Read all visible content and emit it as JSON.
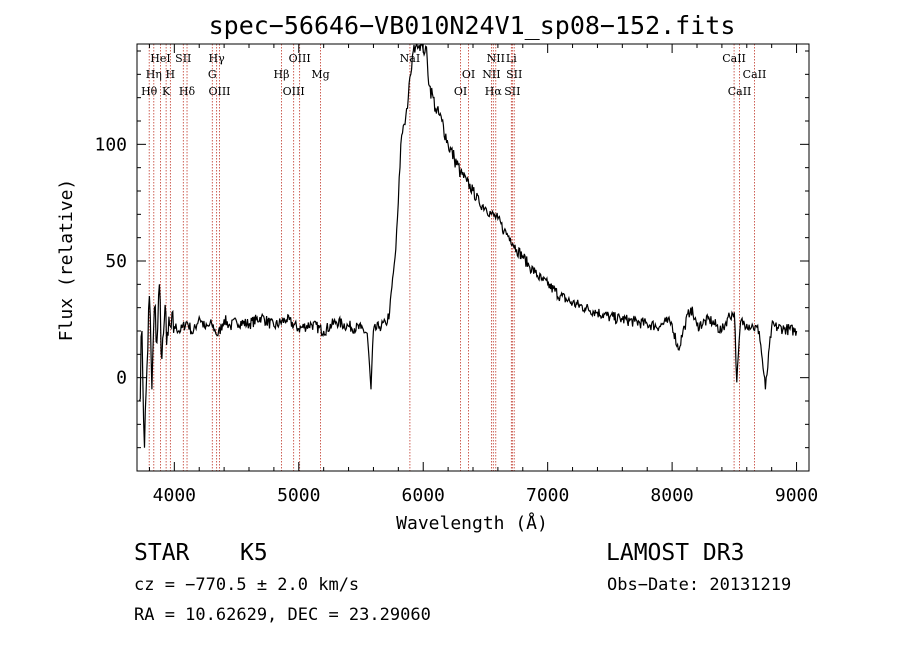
{
  "chart_data": {
    "type": "line",
    "title": "spec−56646−VB010N24V1_sp08−152.fits",
    "xlabel": "Wavelength (Å)",
    "ylabel": "Flux (relative)",
    "xlim": [
      3700,
      9100
    ],
    "ylim": [
      -40,
      143
    ],
    "xticks": [
      4000,
      5000,
      6000,
      7000,
      8000,
      9000
    ],
    "xtick_labels": [
      "4000",
      "5000",
      "6000",
      "7000",
      "8000",
      "9000"
    ],
    "yticks": [
      0,
      50,
      100
    ],
    "ytick_labels": [
      "0",
      "50",
      "100"
    ],
    "series": [
      {
        "name": "spectrum",
        "x": [
          3720,
          3740,
          3760,
          3780,
          3800,
          3820,
          3840,
          3860,
          3880,
          3900,
          3920,
          3950,
          4000,
          4050,
          4100,
          4150,
          4200,
          4250,
          4300,
          4350,
          4400,
          4450,
          4500,
          4600,
          4700,
          4800,
          4900,
          5000,
          5100,
          5200,
          5300,
          5400,
          5500,
          5550,
          5580,
          5600,
          5650,
          5700,
          5730,
          5760,
          5780,
          5800,
          5820,
          5840,
          5860,
          5880,
          5900,
          5920,
          5950,
          5980,
          6000,
          6020,
          6050,
          6080,
          6100,
          6150,
          6200,
          6250,
          6300,
          6350,
          6400,
          6450,
          6500,
          6550,
          6600,
          6650,
          6700,
          6750,
          6800,
          6850,
          6900,
          6950,
          7000,
          7100,
          7200,
          7300,
          7400,
          7500,
          7600,
          7700,
          7800,
          7900,
          7950,
          8000,
          8050,
          8100,
          8150,
          8200,
          8300,
          8400,
          8450,
          8500,
          8520,
          8550,
          8600,
          8650,
          8700,
          8750,
          8800,
          8900,
          9000
        ],
        "values": [
          -10,
          20,
          -30,
          5,
          35,
          -5,
          30,
          15,
          40,
          8,
          25,
          18,
          22,
          20,
          24,
          19,
          26,
          21,
          23,
          18,
          25,
          22,
          24,
          23,
          26,
          22,
          25,
          21,
          23,
          20,
          24,
          22,
          21,
          19,
          -5,
          20,
          22,
          23,
          28,
          45,
          55,
          75,
          100,
          108,
          112,
          120,
          130,
          140,
          145,
          143,
          140,
          142,
          125,
          120,
          115,
          110,
          100,
          94,
          88,
          84,
          80,
          75,
          73,
          70,
          68,
          63,
          60,
          55,
          52,
          48,
          45,
          42,
          40,
          35,
          32,
          30,
          28,
          26,
          25,
          24,
          23,
          22,
          24,
          23,
          12,
          22,
          30,
          22,
          25,
          20,
          26,
          28,
          -2,
          24,
          23,
          22,
          20,
          -5,
          22,
          21,
          20
        ]
      }
    ],
    "lines": [
      {
        "name": "Hθ",
        "x": 3798,
        "row": 3
      },
      {
        "name": "Hη",
        "x": 3835,
        "row": 2
      },
      {
        "name": "HeI",
        "x": 3889,
        "row": 1
      },
      {
        "name": "K",
        "x": 3934,
        "row": 3
      },
      {
        "name": "H",
        "x": 3968,
        "row": 2
      },
      {
        "name": "SII",
        "x": 4072,
        "row": 1
      },
      {
        "name": "Hδ",
        "x": 4102,
        "row": 3
      },
      {
        "name": "Hγ",
        "x": 4340,
        "row": 1
      },
      {
        "name": "G",
        "x": 4305,
        "row": 2
      },
      {
        "name": "OIII",
        "x": 4363,
        "row": 3
      },
      {
        "name": "Hβ",
        "x": 4861,
        "row": 2
      },
      {
        "name": "OIII",
        "x": 4959,
        "row": 3
      },
      {
        "name": "OIII",
        "x": 5007,
        "row": 1
      },
      {
        "name": "Mg",
        "x": 5175,
        "row": 2
      },
      {
        "name": "NaI",
        "x": 5893,
        "row": 1
      },
      {
        "name": "OI",
        "x": 6300,
        "row": 3
      },
      {
        "name": "OI",
        "x": 6364,
        "row": 2
      },
      {
        "name": "NII",
        "x": 6548,
        "row": 2
      },
      {
        "name": "Hα",
        "x": 6563,
        "row": 3
      },
      {
        "name": "NII",
        "x": 6583,
        "row": 1
      },
      {
        "name": "SII",
        "x": 6716,
        "row": 3
      },
      {
        "name": "SII",
        "x": 6731,
        "row": 2
      },
      {
        "name": "Li",
        "x": 6708,
        "row": 1
      },
      {
        "name": "CaII",
        "x": 8498,
        "row": 1
      },
      {
        "name": "CaII",
        "x": 8542,
        "row": 3
      },
      {
        "name": "CaII",
        "x": 8662,
        "row": 2
      }
    ]
  },
  "info": {
    "class_label": "STAR",
    "subclass": "K5",
    "survey": "LAMOST DR3",
    "cz": "cz = −770.5 ± 2.0 km/s",
    "obs_date": "Obs−Date: 20131219",
    "coords": "RA =  10.62629, DEC =  23.29060"
  },
  "colors": {
    "line_marker": "#c0392b",
    "spectrum": "#000000"
  }
}
